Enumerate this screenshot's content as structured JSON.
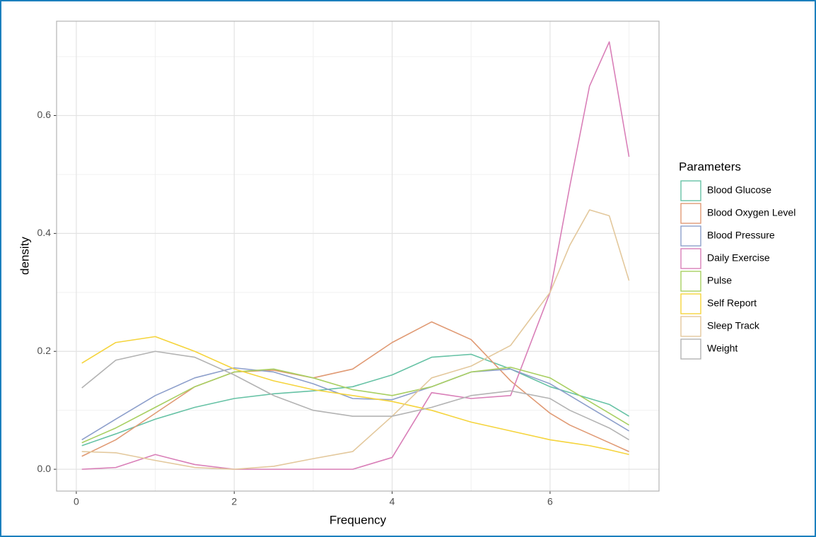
{
  "chart_data": {
    "type": "line",
    "x_label": "Frequency",
    "y_label": "density",
    "legend_title": "Parameters",
    "x": [
      0.07,
      0.5,
      1,
      1.5,
      2,
      2.5,
      3,
      3.5,
      4,
      4.5,
      5,
      5.5,
      6,
      6.25,
      6.5,
      6.75,
      7
    ],
    "series": [
      {
        "name": "Blood Glucose",
        "color": "#66c2a5",
        "values": [
          0.04,
          0.06,
          0.085,
          0.105,
          0.12,
          0.128,
          0.133,
          0.14,
          0.16,
          0.19,
          0.195,
          0.17,
          0.14,
          0.13,
          0.12,
          0.11,
          0.09
        ]
      },
      {
        "name": "Blood Oxygen Level",
        "color": "#e09a74",
        "values": [
          0.022,
          0.05,
          0.095,
          0.14,
          0.165,
          0.168,
          0.155,
          0.17,
          0.215,
          0.25,
          0.22,
          0.15,
          0.095,
          0.075,
          0.06,
          0.045,
          0.03
        ]
      },
      {
        "name": "Blood Pressure",
        "color": "#8d9fcb",
        "values": [
          0.05,
          0.085,
          0.125,
          0.155,
          0.172,
          0.165,
          0.145,
          0.12,
          0.118,
          0.14,
          0.165,
          0.17,
          0.145,
          0.125,
          0.105,
          0.085,
          0.065
        ]
      },
      {
        "name": "Daily Exercise",
        "color": "#d97fb8",
        "values": [
          0.0,
          0.003,
          0.025,
          0.008,
          0.0,
          0.0,
          0.0,
          0.0,
          0.02,
          0.13,
          0.12,
          0.125,
          0.3,
          0.48,
          0.65,
          0.725,
          0.53
        ]
      },
      {
        "name": "Pulse",
        "color": "#a8cf62",
        "values": [
          0.045,
          0.07,
          0.105,
          0.14,
          0.165,
          0.17,
          0.155,
          0.135,
          0.125,
          0.14,
          0.165,
          0.173,
          0.155,
          0.135,
          0.115,
          0.095,
          0.075
        ]
      },
      {
        "name": "Self Report",
        "color": "#f5d43c",
        "values": [
          0.18,
          0.215,
          0.225,
          0.2,
          0.17,
          0.15,
          0.135,
          0.125,
          0.115,
          0.1,
          0.08,
          0.065,
          0.05,
          0.045,
          0.04,
          0.033,
          0.025
        ]
      },
      {
        "name": "Sleep Track",
        "color": "#e3c89c",
        "values": [
          0.03,
          0.028,
          0.015,
          0.003,
          0.0,
          0.005,
          0.018,
          0.03,
          0.09,
          0.155,
          0.175,
          0.21,
          0.3,
          0.38,
          0.44,
          0.43,
          0.32
        ]
      },
      {
        "name": "Weight",
        "color": "#b3b3b3",
        "values": [
          0.138,
          0.185,
          0.2,
          0.19,
          0.16,
          0.125,
          0.1,
          0.09,
          0.09,
          0.105,
          0.125,
          0.133,
          0.12,
          0.1,
          0.085,
          0.07,
          0.05
        ]
      }
    ],
    "xlim": [
      -0.25,
      7.38
    ],
    "ylim": [
      -0.037,
      0.76
    ],
    "xticks": [
      0,
      2,
      4,
      6
    ],
    "yticks": [
      {
        "value": 0,
        "label": "0.0"
      },
      0.2,
      0.4,
      0.6
    ],
    "xminor": [
      1,
      3,
      5,
      7
    ],
    "yminor": [
      0.1,
      0.3,
      0.5,
      0.7
    ],
    "grid": true,
    "legend": "right"
  }
}
